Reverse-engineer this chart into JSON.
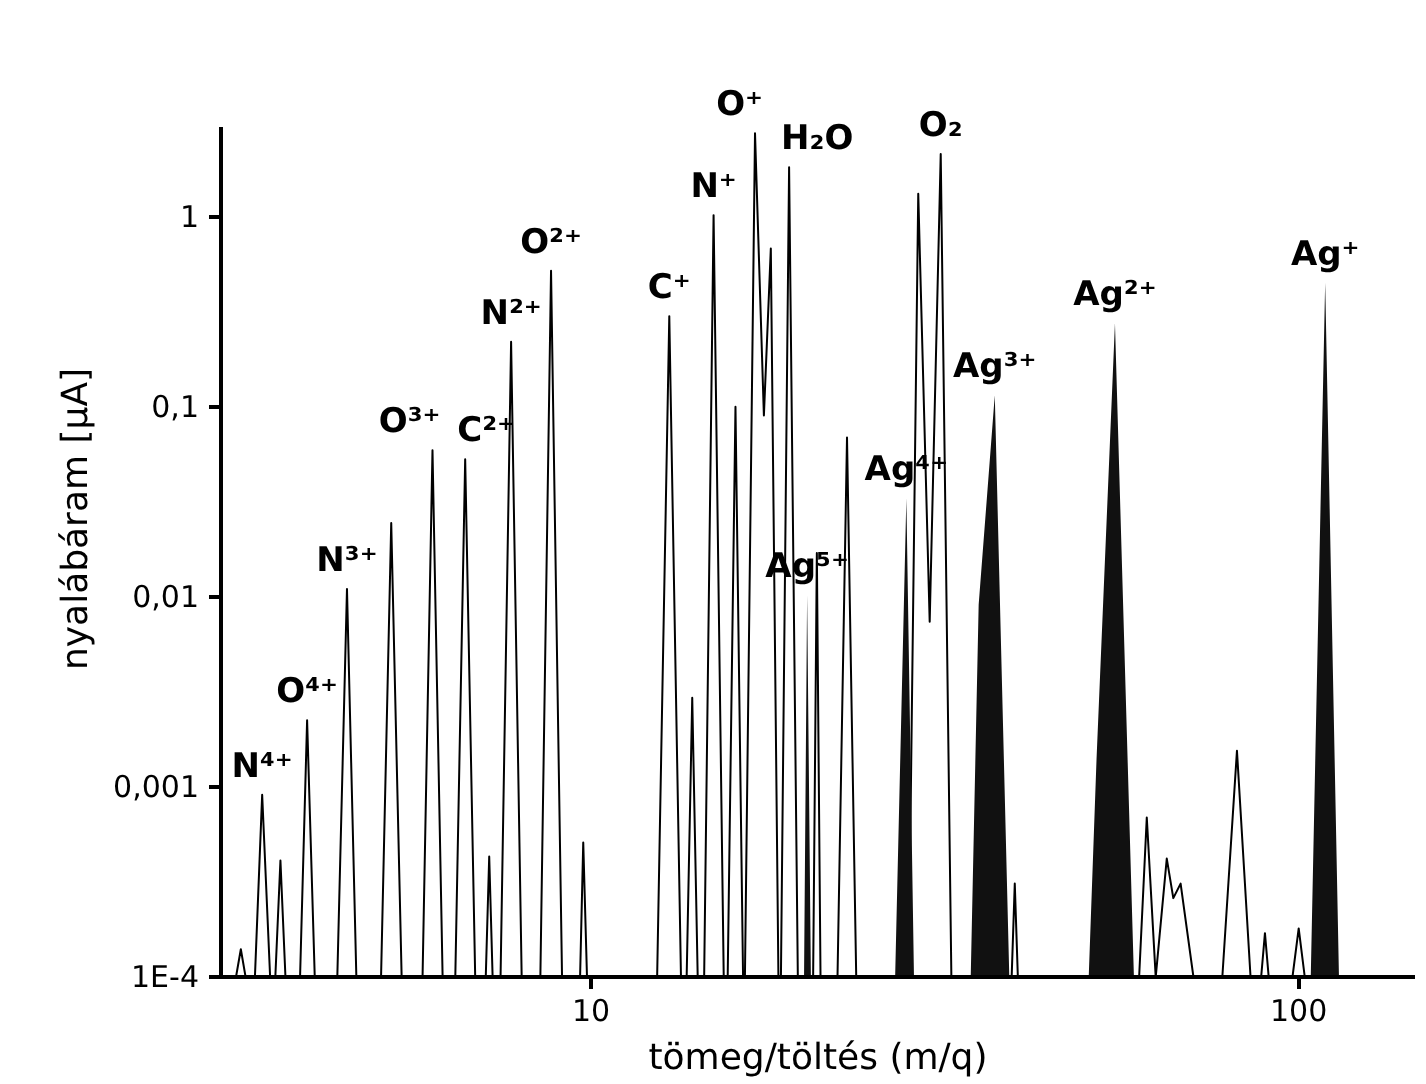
{
  "chart_data": {
    "type": "line",
    "xlabel": "tömeg/töltés (m/q)",
    "ylabel": "nyalábáram [µA]",
    "log": "xy",
    "grid": false,
    "marker": "none",
    "line_style": "solid",
    "xlim": [
      3,
      146
    ],
    "ylim": [
      0.0001,
      3
    ],
    "xticks": [
      10,
      100
    ],
    "yticks": [
      {
        "value": 0.0001,
        "label": "1E-4"
      },
      {
        "value": 0.001,
        "label": "0,001"
      },
      {
        "value": 0.01,
        "label": "0,01"
      },
      {
        "value": 0.1,
        "label": "0,1"
      },
      {
        "value": 1,
        "label": "1"
      }
    ],
    "series": [
      {
        "color": "#000000",
        "x": [
          3.15,
          3.2,
          3.25,
          3.35,
          3.43,
          3.52,
          3.58,
          3.64,
          3.7,
          3.88,
          3.97,
          4.07,
          4.38,
          4.52,
          4.66,
          5.05,
          5.22,
          5.4,
          5.78,
          5.97,
          6.17,
          6.43,
          6.64,
          6.86,
          7.1,
          7.18,
          7.26,
          7.45,
          7.71,
          7.98,
          8.48,
          8.78,
          9.1,
          9.65,
          9.75,
          9.87,
          12.4,
          12.9,
          13.4,
          13.65,
          13.9,
          14.15,
          14.45,
          14.9,
          15.4,
          15.6,
          16.0,
          16.4,
          16.5,
          17.05,
          17.55,
          17.95,
          18.4,
          18.55,
          19.05,
          19.6,
          20.6,
          20.85,
          21.1,
          22.3,
          23.0,
          23.7,
          28.1,
          29.0,
          30.1,
          31.2,
          32.3,
          39.3,
          39.7,
          40.1,
          59.5,
          61.0,
          62.8,
          65.1,
          66.5,
          68.1,
          71.0,
          78.0,
          81.8,
          85.5,
          88.5,
          89.6,
          90.7,
          98.0,
          100,
          102
        ],
        "values": [
          0.0001,
          0.00014,
          0.0001,
          0.0001,
          0.00091,
          0.0001,
          0.0001,
          0.00041,
          0.0001,
          0.0001,
          0.00224,
          0.0001,
          0.0001,
          0.011,
          0.0001,
          0.0001,
          0.0245,
          0.0001,
          0.0001,
          0.059,
          0.0001,
          0.0001,
          0.053,
          0.0001,
          0.0001,
          0.00043,
          0.0001,
          0.0001,
          0.22,
          0.0001,
          0.0001,
          0.52,
          0.0001,
          0.0001,
          0.00051,
          0.0001,
          0.0001,
          0.3,
          0.0001,
          0.0001,
          0.00295,
          0.0001,
          0.0001,
          1.02,
          0.0001,
          0.0001,
          0.1,
          0.0001,
          0.0001,
          2.75,
          0.09,
          0.68,
          0.0001,
          0.0001,
          1.82,
          0.0001,
          0.0001,
          0.017,
          0.0001,
          0.0001,
          0.069,
          0.0001,
          0.0001,
          1.32,
          0.0074,
          2.14,
          0.0001,
          0.0001,
          0.00031,
          0.0001,
          0.0001,
          0.00069,
          0.0001,
          0.00042,
          0.00026,
          0.00031,
          0.0001,
          0.0001,
          0.00155,
          0.0001,
          0.0001,
          0.00017,
          0.0001,
          0.0001,
          0.00018,
          0.0001
        ]
      },
      {
        "type": "area",
        "color": "#111111",
        "x": [
          20.0,
          20.2,
          20.45,
          26.9,
          27.9,
          28.6,
          34.4,
          35.3,
          37.2,
          39.0,
          50.5,
          51.8,
          55.0,
          58.5,
          104.0,
          109,
          114
        ],
        "values": [
          0.0001,
          0.0102,
          0.0001,
          0.0001,
          0.033,
          0.0001,
          0.0001,
          0.0091,
          0.115,
          0.0001,
          0.0001,
          0.0014,
          0.275,
          0.0001,
          0.0001,
          0.45,
          0.0001
        ]
      }
    ],
    "annotations": [
      {
        "text": "N⁴⁺",
        "x": 3.43,
        "y": 0.00091
      },
      {
        "text": "O⁴⁺",
        "x": 3.97,
        "y": 0.00224
      },
      {
        "text": "N³⁺",
        "x": 4.52,
        "y": 0.011
      },
      {
        "text": "O³⁺",
        "x": 5.97,
        "y": 0.059
      },
      {
        "text": "C²⁺",
        "x": 6.64,
        "y": 0.053
      },
      {
        "text": "N²⁺",
        "x": 7.71,
        "y": 0.22
      },
      {
        "text": "O²⁺",
        "x": 8.78,
        "y": 0.52
      },
      {
        "text": "C⁺",
        "x": 12.9,
        "y": 0.3
      },
      {
        "text": "N⁺",
        "x": 14.9,
        "y": 1.02
      },
      {
        "text": "O⁺",
        "x": 17.05,
        "y": 2.75
      },
      {
        "text": "H₂O",
        "x": 19.05,
        "y": 1.82
      },
      {
        "text": "Ag⁵⁺",
        "x": 20.2,
        "y": 0.0102
      },
      {
        "text": "Ag⁴⁺",
        "x": 27.9,
        "y": 0.033
      },
      {
        "text": "O₂",
        "x": 31.2,
        "y": 2.14
      },
      {
        "text": "Ag³⁺",
        "x": 37.2,
        "y": 0.115
      },
      {
        "text": "Ag²⁺",
        "x": 55.0,
        "y": 0.275
      },
      {
        "text": "Ag⁺",
        "x": 109,
        "y": 0.45
      }
    ]
  }
}
